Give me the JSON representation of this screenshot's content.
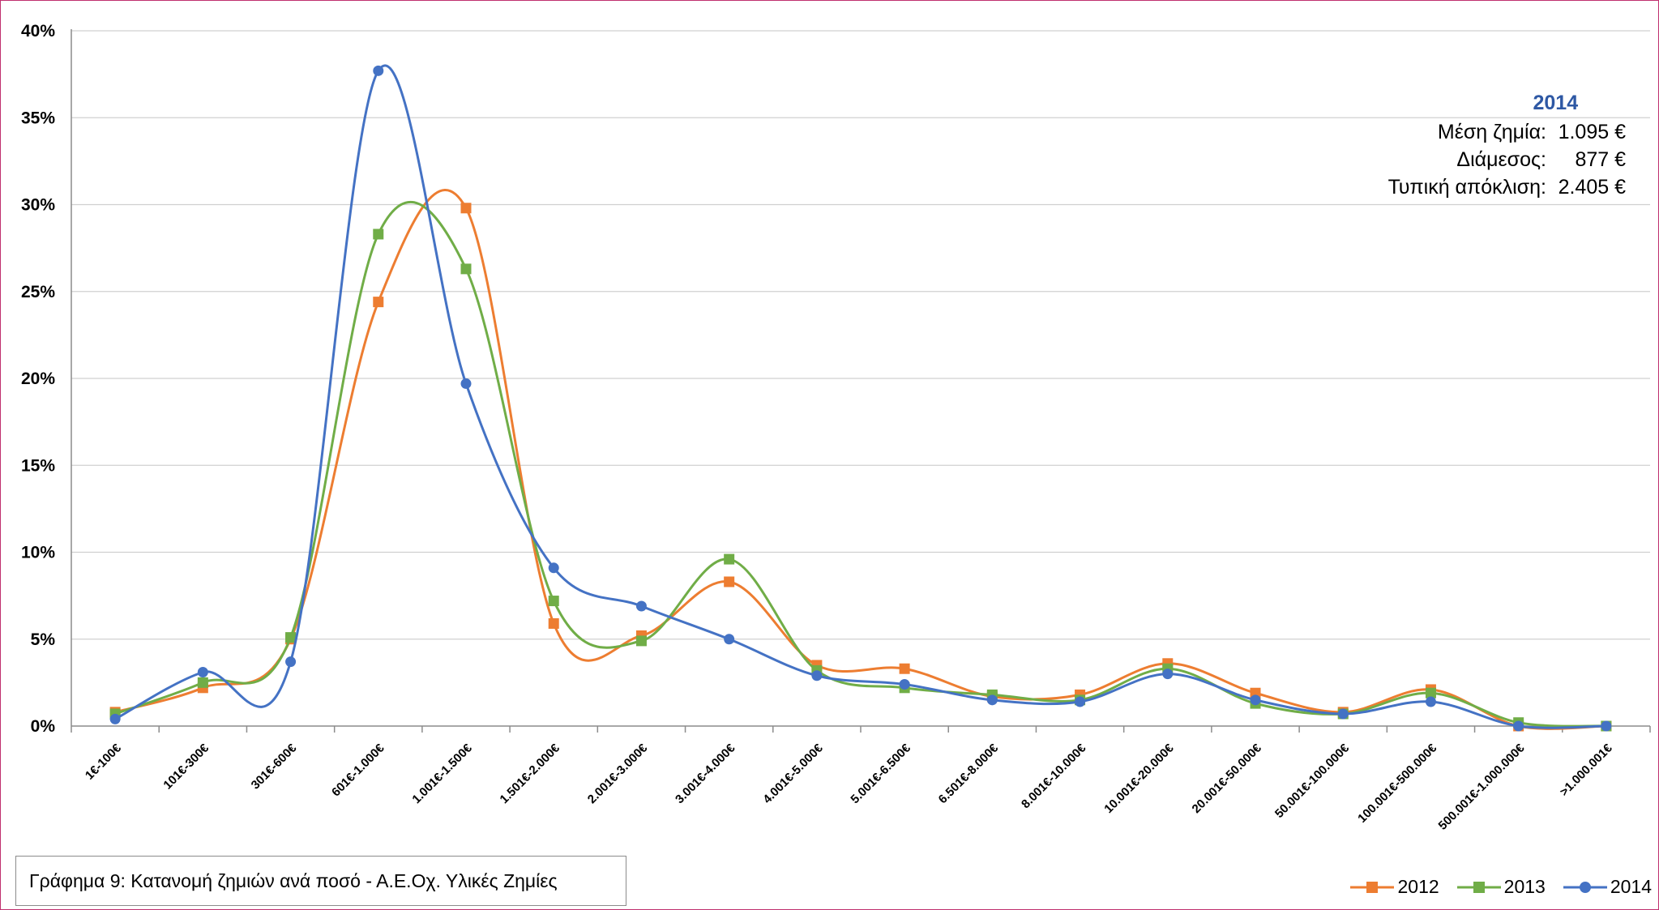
{
  "chart_data": {
    "type": "line",
    "title": "",
    "xlabel": "",
    "ylabel": "",
    "ylim": [
      0,
      40
    ],
    "y_ticks": [
      "0%",
      "5%",
      "10%",
      "15%",
      "20%",
      "25%",
      "30%",
      "35%",
      "40%"
    ],
    "grid": "horizontal",
    "smooth": true,
    "legend_position": "bottom-right",
    "categories": [
      "1€-100€",
      "101€-300€",
      "301€-600€",
      "601€-1.000€",
      "1.001€-1.500€",
      "1.501€-2.000€",
      "2.001€-3.000€",
      "3.001€-4.000€",
      "4.001€-5.000€",
      "5.001€-6.500€",
      "6.501€-8.000€",
      "8.001€-10.000€",
      "10.001€-20.000€",
      "20.001€-50.000€",
      "50.001€-100.000€",
      "100.001€-500.000€",
      "500.001€-1.000.000€",
      ">1.000.001€"
    ],
    "series": [
      {
        "name": "2012",
        "color": "#ed7d31",
        "marker": "square",
        "values": [
          0.8,
          2.2,
          5.0,
          24.4,
          29.8,
          5.9,
          5.2,
          8.3,
          3.5,
          3.3,
          1.7,
          1.8,
          3.6,
          1.9,
          0.8,
          2.1,
          0.0,
          0.0
        ]
      },
      {
        "name": "2013",
        "color": "#70ad47",
        "marker": "square",
        "values": [
          0.7,
          2.5,
          5.1,
          28.3,
          26.3,
          7.2,
          4.9,
          9.6,
          3.2,
          2.2,
          1.8,
          1.5,
          3.3,
          1.3,
          0.7,
          1.9,
          0.2,
          0.0
        ]
      },
      {
        "name": "2014",
        "color": "#4472c4",
        "marker": "circle",
        "values": [
          0.4,
          3.1,
          3.7,
          37.7,
          19.7,
          9.1,
          6.9,
          5.0,
          2.9,
          2.4,
          1.5,
          1.4,
          3.0,
          1.5,
          0.7,
          1.4,
          0.0,
          0.0
        ]
      }
    ]
  },
  "stats_box": {
    "title": "2014",
    "rows": [
      {
        "label": "Μέση ζημία:",
        "value": "1.095 €"
      },
      {
        "label": "Διάμεσος:",
        "value": "877 €"
      },
      {
        "label": "Τυπική απόκλιση:",
        "value": "2.405 €"
      }
    ]
  },
  "caption": "Γράφημα 9: Κατανομή ζημιών ανά ποσό - Α.Ε.Οχ. Υλικές Ζημίες",
  "legend": [
    "2012",
    "2013",
    "2014"
  ]
}
